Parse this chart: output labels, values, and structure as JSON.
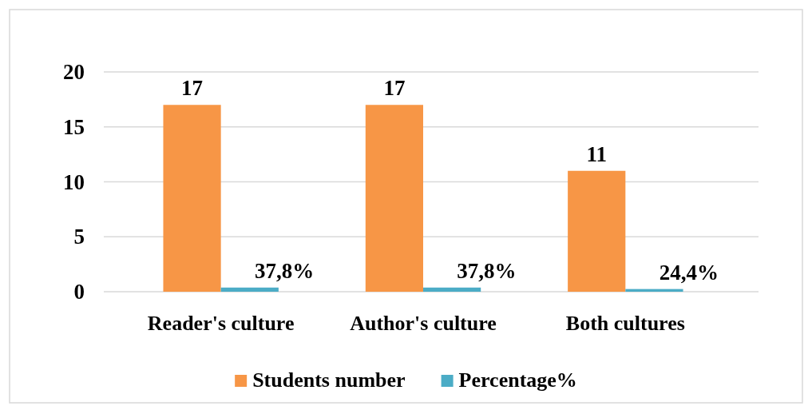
{
  "chart_data": {
    "type": "bar",
    "categories": [
      "Reader's culture",
      "Author's culture",
      "Both cultures"
    ],
    "series": [
      {
        "name": "Students number",
        "color": "#f79646",
        "values": [
          17,
          17,
          11
        ],
        "value_labels": [
          "17",
          "17",
          "11"
        ]
      },
      {
        "name": "Percentage%",
        "color": "#4bacc6",
        "values": [
          0.378,
          0.378,
          0.244
        ],
        "value_labels": [
          "37,8%",
          "37,8%",
          "24,4%"
        ]
      }
    ],
    "ylim": [
      0,
      20
    ],
    "yticks": [
      0,
      5,
      10,
      15,
      20
    ],
    "grid": "y",
    "legend": "bottom"
  }
}
